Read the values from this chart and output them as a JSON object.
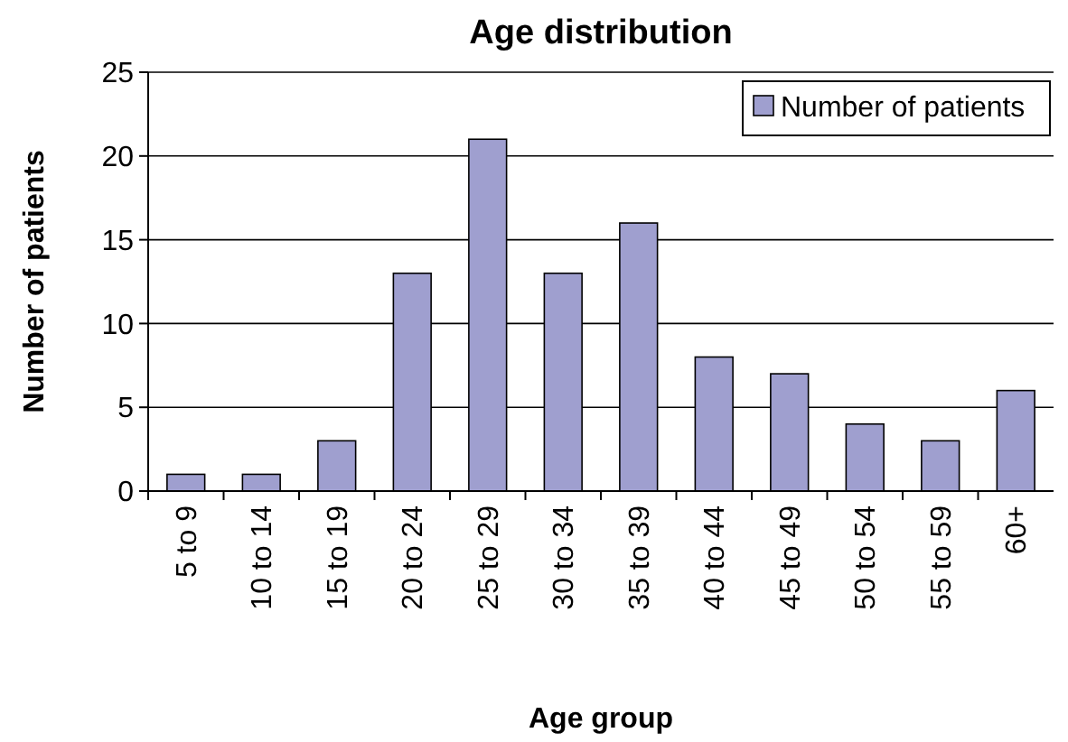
{
  "chart_data": {
    "type": "bar",
    "title": "Age distribution",
    "xlabel": "Age group",
    "ylabel": "Number of patients",
    "categories": [
      "5 to 9",
      "10 to 14",
      "15 to 19",
      "20 to 24",
      "25 to 29",
      "30 to 34",
      "35 to 39",
      "40 to 44",
      "45 to 49",
      "50 to 54",
      "55 to 59",
      "60+"
    ],
    "series": [
      {
        "name": "Number of patients",
        "color": "#9f9fcf",
        "values": [
          1,
          1,
          3,
          13,
          21,
          13,
          16,
          8,
          7,
          4,
          3,
          6
        ]
      }
    ],
    "ylim": [
      0,
      25
    ],
    "yticks": [
      0,
      5,
      10,
      15,
      20,
      25
    ],
    "grid": "y",
    "legend": "top right"
  }
}
